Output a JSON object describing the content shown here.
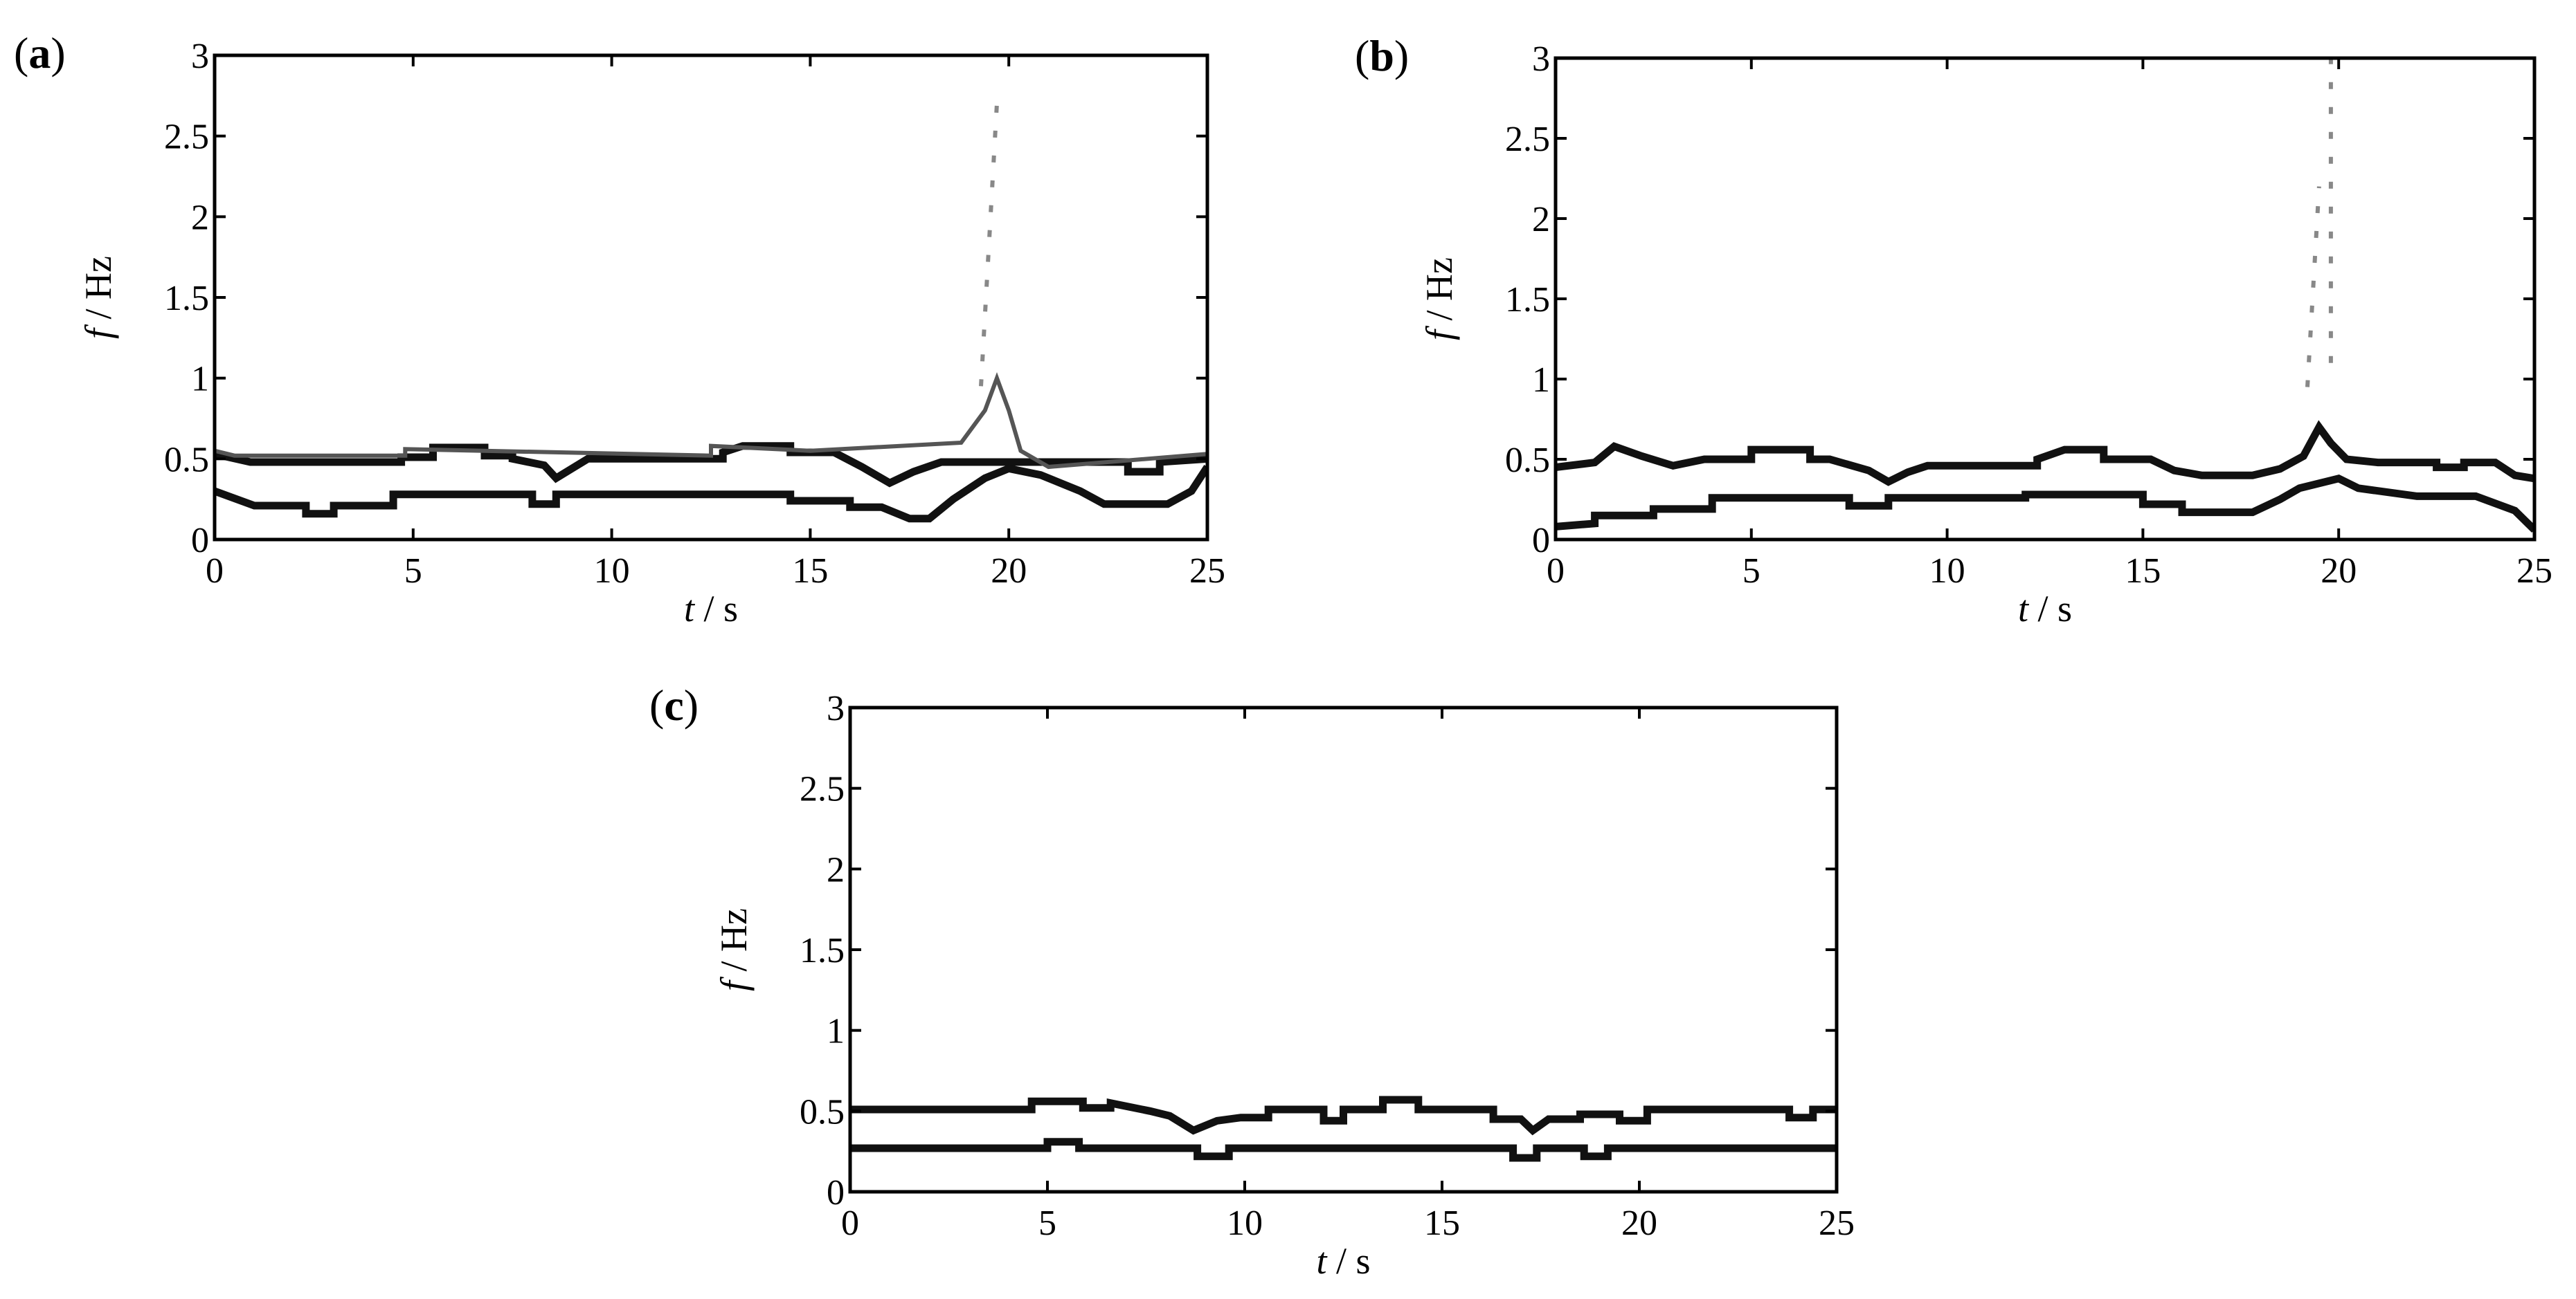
{
  "chart_data": [
    {
      "type": "line",
      "panel_label": "a",
      "xlabel_var": "t",
      "xlabel_unit": " / s",
      "ylabel_var": "f",
      "ylabel_unit": " / Hz",
      "xlim": [
        0,
        25
      ],
      "ylim": [
        0,
        3
      ],
      "xticks": [
        "0",
        "5",
        "10",
        "15",
        "20",
        "25"
      ],
      "yticks": [
        "0",
        "0.5",
        "1",
        "1.5",
        "2",
        "2.5",
        "3"
      ],
      "series": [
        {
          "style": "ridge",
          "points": [
            [
              0,
              0.53
            ],
            [
              0.9,
              0.48
            ],
            [
              4.7,
              0.48
            ],
            [
              4.7,
              0.51
            ],
            [
              5.5,
              0.51
            ],
            [
              5.5,
              0.57
            ],
            [
              6.8,
              0.57
            ],
            [
              6.8,
              0.52
            ],
            [
              7.5,
              0.52
            ],
            [
              7.5,
              0.5
            ],
            [
              8.3,
              0.46
            ],
            [
              8.6,
              0.38
            ],
            [
              9.0,
              0.44
            ],
            [
              9.4,
              0.5
            ],
            [
              12.8,
              0.5
            ],
            [
              12.8,
              0.54
            ],
            [
              13.3,
              0.58
            ],
            [
              14.5,
              0.58
            ],
            [
              14.5,
              0.54
            ],
            [
              15.6,
              0.54
            ],
            [
              16.3,
              0.45
            ],
            [
              17.0,
              0.35
            ],
            [
              17.6,
              0.42
            ],
            [
              18.3,
              0.48
            ],
            [
              23.0,
              0.48
            ],
            [
              23.0,
              0.42
            ],
            [
              23.8,
              0.42
            ],
            [
              23.8,
              0.48
            ],
            [
              25,
              0.5
            ]
          ]
        },
        {
          "style": "ridge",
          "points": [
            [
              0,
              0.3
            ],
            [
              1.0,
              0.21
            ],
            [
              2.3,
              0.21
            ],
            [
              2.3,
              0.16
            ],
            [
              3.0,
              0.16
            ],
            [
              3.0,
              0.21
            ],
            [
              4.5,
              0.21
            ],
            [
              4.5,
              0.28
            ],
            [
              8.0,
              0.28
            ],
            [
              8.0,
              0.22
            ],
            [
              8.6,
              0.22
            ],
            [
              8.6,
              0.28
            ],
            [
              14.5,
              0.28
            ],
            [
              14.5,
              0.24
            ],
            [
              16.0,
              0.24
            ],
            [
              16.0,
              0.2
            ],
            [
              16.8,
              0.2
            ],
            [
              17.5,
              0.13
            ],
            [
              18.0,
              0.13
            ],
            [
              18.6,
              0.25
            ],
            [
              19.4,
              0.38
            ],
            [
              20.0,
              0.44
            ],
            [
              20.8,
              0.4
            ],
            [
              21.8,
              0.3
            ],
            [
              22.4,
              0.22
            ],
            [
              24.0,
              0.22
            ],
            [
              24.6,
              0.3
            ],
            [
              25,
              0.45
            ]
          ]
        },
        {
          "style": "ridge-thin",
          "points": [
            [
              0,
              0.55
            ],
            [
              0.5,
              0.52
            ],
            [
              4.8,
              0.52
            ],
            [
              4.8,
              0.56
            ],
            [
              12.5,
              0.52
            ],
            [
              12.5,
              0.58
            ],
            [
              15.0,
              0.55
            ],
            [
              18.8,
              0.6
            ],
            [
              19.4,
              0.8
            ],
            [
              19.7,
              1.0
            ],
            [
              20.0,
              0.8
            ],
            [
              20.3,
              0.55
            ],
            [
              21.0,
              0.45
            ],
            [
              25,
              0.53
            ]
          ]
        },
        {
          "style": "spike",
          "points": [
            [
              19.3,
              0.95
            ],
            [
              19.7,
              2.7
            ]
          ]
        }
      ]
    },
    {
      "type": "line",
      "panel_label": "b",
      "xlabel_var": "t",
      "xlabel_unit": " / s",
      "ylabel_var": "f",
      "ylabel_unit": " / Hz",
      "xlim": [
        0,
        25
      ],
      "ylim": [
        0,
        3
      ],
      "xticks": [
        "0",
        "5",
        "10",
        "15",
        "20",
        "25"
      ],
      "yticks": [
        "0",
        "0.5",
        "1",
        "1.5",
        "2",
        "2.5",
        "3"
      ],
      "series": [
        {
          "style": "ridge",
          "points": [
            [
              0,
              0.45
            ],
            [
              1.0,
              0.48
            ],
            [
              1.5,
              0.58
            ],
            [
              2.2,
              0.52
            ],
            [
              3.0,
              0.46
            ],
            [
              3.8,
              0.5
            ],
            [
              5.0,
              0.5
            ],
            [
              5.0,
              0.56
            ],
            [
              6.5,
              0.56
            ],
            [
              6.5,
              0.5
            ],
            [
              7.0,
              0.5
            ],
            [
              8.0,
              0.43
            ],
            [
              8.5,
              0.36
            ],
            [
              9.0,
              0.42
            ],
            [
              9.5,
              0.46
            ],
            [
              12.3,
              0.46
            ],
            [
              12.3,
              0.5
            ],
            [
              13.0,
              0.56
            ],
            [
              14.0,
              0.56
            ],
            [
              14.0,
              0.5
            ],
            [
              15.2,
              0.5
            ],
            [
              15.8,
              0.43
            ],
            [
              16.5,
              0.4
            ],
            [
              17.8,
              0.4
            ],
            [
              18.5,
              0.44
            ],
            [
              19.1,
              0.52
            ],
            [
              19.5,
              0.7
            ],
            [
              19.8,
              0.6
            ],
            [
              20.2,
              0.5
            ],
            [
              21.0,
              0.48
            ],
            [
              22.5,
              0.48
            ],
            [
              22.5,
              0.45
            ],
            [
              23.2,
              0.45
            ],
            [
              23.2,
              0.48
            ],
            [
              24.0,
              0.48
            ],
            [
              24.5,
              0.4
            ],
            [
              25,
              0.38
            ]
          ]
        },
        {
          "style": "ridge",
          "points": [
            [
              0,
              0.08
            ],
            [
              1.0,
              0.1
            ],
            [
              1.0,
              0.15
            ],
            [
              2.5,
              0.15
            ],
            [
              2.5,
              0.19
            ],
            [
              4.0,
              0.19
            ],
            [
              4.0,
              0.26
            ],
            [
              7.5,
              0.26
            ],
            [
              7.5,
              0.21
            ],
            [
              8.5,
              0.21
            ],
            [
              8.5,
              0.26
            ],
            [
              12.0,
              0.26
            ],
            [
              12.0,
              0.28
            ],
            [
              15.0,
              0.28
            ],
            [
              15.0,
              0.22
            ],
            [
              16.0,
              0.22
            ],
            [
              16.0,
              0.17
            ],
            [
              17.8,
              0.17
            ],
            [
              18.5,
              0.25
            ],
            [
              19.0,
              0.32
            ],
            [
              20.0,
              0.38
            ],
            [
              20.5,
              0.32
            ],
            [
              22.0,
              0.27
            ],
            [
              23.5,
              0.27
            ],
            [
              24.5,
              0.18
            ],
            [
              25,
              0.06
            ]
          ]
        },
        {
          "style": "spike",
          "points": [
            [
              19.2,
              0.95
            ],
            [
              19.5,
              2.2
            ]
          ]
        },
        {
          "style": "spike",
          "points": [
            [
              19.8,
              1.1
            ],
            [
              19.8,
              3.0
            ]
          ]
        }
      ]
    },
    {
      "type": "line",
      "panel_label": "c",
      "xlabel_var": "t",
      "xlabel_unit": " / s",
      "ylabel_var": "f",
      "ylabel_unit": " / Hz",
      "xlim": [
        0,
        25
      ],
      "ylim": [
        0,
        3
      ],
      "xticks": [
        "0",
        "5",
        "10",
        "15",
        "20",
        "25"
      ],
      "yticks": [
        "0",
        "0.5",
        "1",
        "1.5",
        "2",
        "2.5",
        "3"
      ],
      "series": [
        {
          "style": "ridge",
          "points": [
            [
              0,
              0.51
            ],
            [
              4.6,
              0.51
            ],
            [
              4.6,
              0.56
            ],
            [
              5.9,
              0.56
            ],
            [
              5.9,
              0.52
            ],
            [
              6.6,
              0.52
            ],
            [
              6.6,
              0.55
            ],
            [
              7.6,
              0.5
            ],
            [
              8.1,
              0.47
            ],
            [
              8.7,
              0.38
            ],
            [
              9.3,
              0.44
            ],
            [
              9.9,
              0.46
            ],
            [
              10.6,
              0.46
            ],
            [
              10.6,
              0.51
            ],
            [
              12.0,
              0.51
            ],
            [
              12.0,
              0.44
            ],
            [
              12.5,
              0.44
            ],
            [
              12.5,
              0.51
            ],
            [
              13.5,
              0.51
            ],
            [
              13.5,
              0.57
            ],
            [
              14.4,
              0.57
            ],
            [
              14.4,
              0.51
            ],
            [
              16.3,
              0.51
            ],
            [
              16.3,
              0.45
            ],
            [
              17.0,
              0.45
            ],
            [
              17.3,
              0.38
            ],
            [
              17.7,
              0.45
            ],
            [
              18.5,
              0.45
            ],
            [
              18.5,
              0.48
            ],
            [
              19.5,
              0.48
            ],
            [
              19.5,
              0.44
            ],
            [
              20.2,
              0.44
            ],
            [
              20.2,
              0.51
            ],
            [
              23.8,
              0.51
            ],
            [
              23.8,
              0.46
            ],
            [
              24.4,
              0.46
            ],
            [
              24.4,
              0.51
            ],
            [
              25,
              0.51
            ]
          ]
        },
        {
          "style": "ridge",
          "points": [
            [
              0,
              0.27
            ],
            [
              5.0,
              0.27
            ],
            [
              5.0,
              0.31
            ],
            [
              5.8,
              0.31
            ],
            [
              5.8,
              0.27
            ],
            [
              8.8,
              0.27
            ],
            [
              8.8,
              0.22
            ],
            [
              9.6,
              0.22
            ],
            [
              9.6,
              0.27
            ],
            [
              16.8,
              0.27
            ],
            [
              16.8,
              0.21
            ],
            [
              17.4,
              0.21
            ],
            [
              17.4,
              0.27
            ],
            [
              18.6,
              0.27
            ],
            [
              18.6,
              0.22
            ],
            [
              19.2,
              0.22
            ],
            [
              19.2,
              0.27
            ],
            [
              25,
              0.27
            ]
          ]
        }
      ]
    }
  ]
}
